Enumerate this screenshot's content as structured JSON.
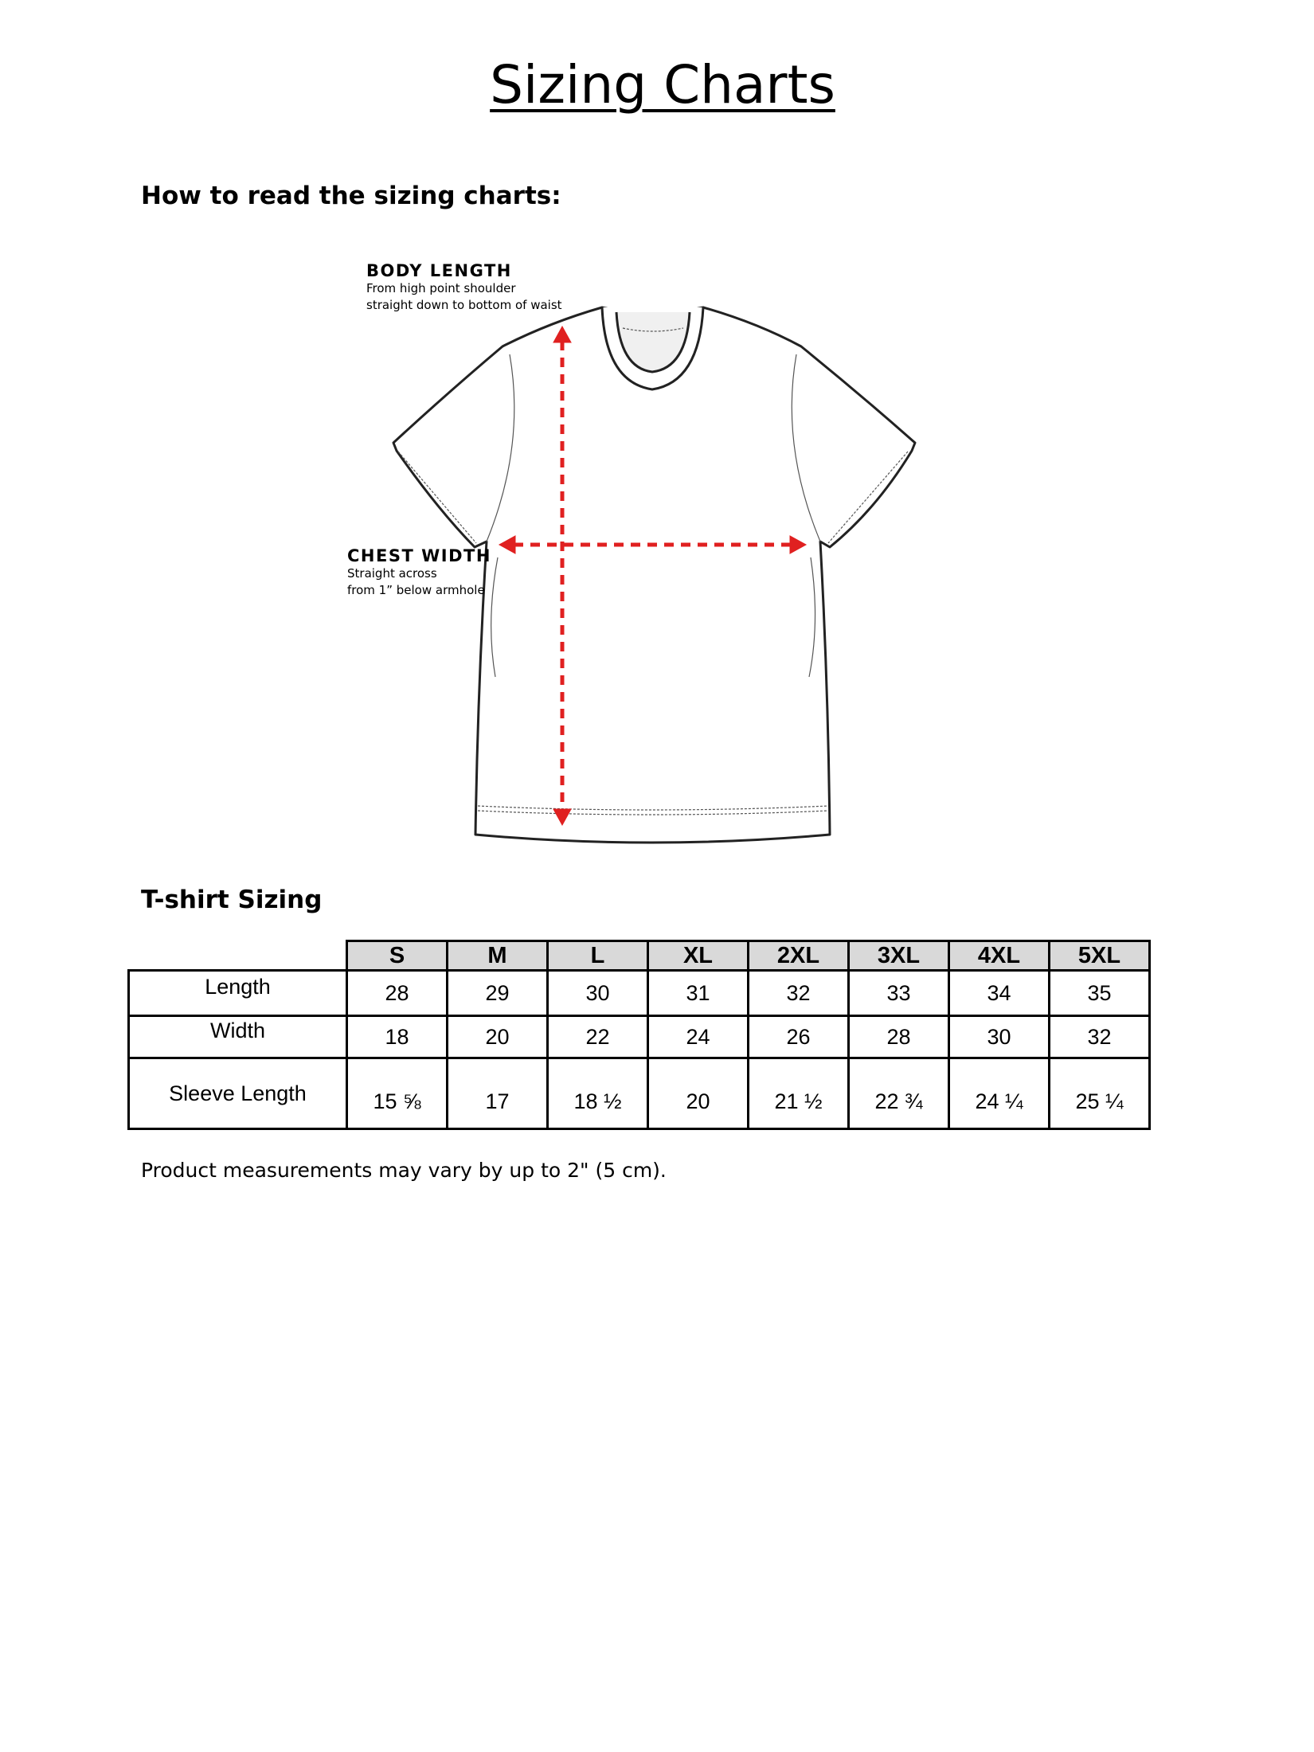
{
  "title": "Sizing Charts",
  "how_to_heading": "How to read the sizing charts:",
  "diagram": {
    "body_length": {
      "heading": "BODY LENGTH",
      "line1": "From high point shoulder",
      "line2": "straight down to bottom of waist"
    },
    "chest_width": {
      "heading": "CHEST WIDTH",
      "line1": "Straight across",
      "line2": "from 1” below armhole"
    },
    "arrow_color": "#e02020"
  },
  "table_heading": "T-shirt Sizing",
  "table": {
    "sizes": [
      "S",
      "M",
      "L",
      "XL",
      "2XL",
      "3XL",
      "4XL",
      "5XL"
    ],
    "rows": [
      {
        "label": "Length",
        "values": [
          "28",
          "29",
          "30",
          "31",
          "32",
          "33",
          "34",
          "35"
        ]
      },
      {
        "label": "Width",
        "values": [
          "18",
          "20",
          "22",
          "24",
          "26",
          "28",
          "30",
          "32"
        ]
      },
      {
        "label": "Sleeve Length",
        "values": [
          "15 ⅝",
          "17",
          "18 ½",
          "20",
          "21 ½",
          "22 ¾",
          "24 ¼",
          "25 ¼"
        ]
      }
    ],
    "header_bg": "#d9d9d9"
  },
  "note": "Product measurements may vary by up to 2\" (5 cm)."
}
